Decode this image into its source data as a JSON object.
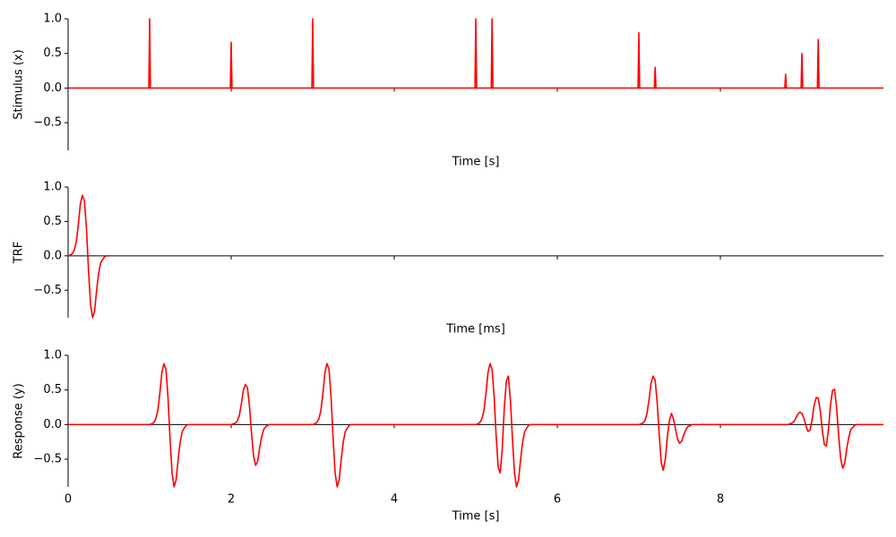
{
  "chart_data": [
    {
      "type": "line",
      "ylabel": "Stimulus (x)",
      "xlabel": "Time [s]",
      "color": "#ff0000",
      "x": [
        0,
        0.99,
        1,
        1.01,
        1.99,
        2,
        2.01,
        2.99,
        3,
        3.01,
        4.99,
        5,
        5.01,
        5.19,
        5.2,
        5.21,
        6.99,
        7,
        7.01,
        7.19,
        7.2,
        7.21,
        8.79,
        8.8,
        8.81,
        8.99,
        9,
        9.01,
        9.19,
        9.2,
        9.21,
        10
      ],
      "values": [
        0,
        0,
        1,
        0,
        0,
        0.66,
        0,
        0,
        1,
        0,
        0,
        1,
        0,
        0,
        1,
        0,
        0,
        0.8,
        0,
        0,
        0.3,
        0,
        0,
        0.2,
        0,
        0,
        0.5,
        0,
        0,
        0.7,
        0,
        0
      ],
      "xlim": [
        0,
        10
      ],
      "xticks": [
        0,
        2,
        4,
        6,
        8
      ],
      "xtick_labels": false,
      "ylim": [
        -0.9,
        1.0
      ],
      "yticks": [
        {
          "value": 1.0,
          "label": "1.0"
        },
        {
          "value": 0.5,
          "label": "0.5"
        },
        {
          "value": 0.0,
          "label": "0.0"
        },
        {
          "value": -0.5,
          "label": "−0.5"
        }
      ]
    },
    {
      "type": "line",
      "ylabel": "TRF",
      "xlabel": "Time [ms]",
      "color": "#ff0000",
      "x": [
        0,
        0.025,
        0.05,
        0.075,
        0.1,
        0.125,
        0.15,
        0.175,
        0.2,
        0.225,
        0.25,
        0.275,
        0.3,
        0.325,
        0.35,
        0.375,
        0.4,
        0.425,
        0.45,
        0.475,
        0.5
      ],
      "values": [
        0,
        0.01,
        0.03,
        0.08,
        0.2,
        0.45,
        0.75,
        0.88,
        0.8,
        0.4,
        -0.2,
        -0.7,
        -0.9,
        -0.8,
        -0.5,
        -0.25,
        -0.1,
        -0.05,
        -0.01,
        0,
        0
      ],
      "xlim": [
        0,
        10
      ],
      "xticks": [
        0,
        2,
        4,
        6,
        8
      ],
      "xtick_labels": false,
      "ylim": [
        -0.9,
        1.0
      ],
      "yticks": [
        {
          "value": 1.0,
          "label": "1.0"
        },
        {
          "value": 0.5,
          "label": "0.5"
        },
        {
          "value": 0.0,
          "label": "0.0"
        },
        {
          "value": -0.5,
          "label": "−0.5"
        }
      ]
    },
    {
      "type": "line",
      "ylabel": "Response (y)",
      "xlabel": "Time [s]",
      "color": "#ff0000",
      "x": [
        0,
        1,
        1.025,
        1.05,
        1.075,
        1.1,
        1.125,
        1.15,
        1.175,
        1.2,
        1.225,
        1.25,
        1.275,
        1.3,
        1.325,
        1.35,
        1.375,
        1.4,
        1.425,
        1.45,
        1.475,
        2,
        2.025,
        2.05,
        2.075,
        2.1,
        2.125,
        2.15,
        2.175,
        2.2,
        2.225,
        2.25,
        2.275,
        2.3,
        2.325,
        2.35,
        2.375,
        2.4,
        2.425,
        2.45,
        2.475,
        3,
        3.025,
        3.05,
        3.075,
        3.1,
        3.125,
        3.15,
        3.175,
        3.2,
        3.225,
        3.25,
        3.275,
        3.3,
        3.325,
        3.35,
        3.375,
        3.4,
        3.425,
        3.45,
        3.475,
        5,
        5.025,
        5.05,
        5.075,
        5.1,
        5.125,
        5.15,
        5.175,
        5.2,
        5.225,
        5.25,
        5.275,
        5.3,
        5.325,
        5.35,
        5.375,
        5.4,
        5.425,
        5.45,
        5.475,
        5.5,
        5.525,
        5.55,
        5.575,
        5.6,
        5.625,
        5.65,
        5.675,
        7,
        7.025,
        7.05,
        7.075,
        7.1,
        7.125,
        7.15,
        7.175,
        7.2,
        7.225,
        7.25,
        7.275,
        7.3,
        7.325,
        7.35,
        7.375,
        7.4,
        7.425,
        7.45,
        7.475,
        7.5,
        7.525,
        7.55,
        7.575,
        7.6,
        7.625,
        7.65,
        8.8,
        8.825,
        8.85,
        8.875,
        8.9,
        8.925,
        8.95,
        8.975,
        9,
        9.025,
        9.05,
        9.075,
        9.1,
        9.125,
        9.15,
        9.175,
        9.2,
        9.225,
        9.25,
        9.275,
        9.3,
        9.325,
        9.35,
        9.375,
        9.4,
        9.425,
        9.45,
        9.475,
        9.5,
        9.525,
        9.55,
        9.575,
        9.6,
        9.625,
        9.65,
        9.675,
        10
      ],
      "values": [
        0,
        0,
        0.01,
        0.03,
        0.08,
        0.2,
        0.45,
        0.75,
        0.88,
        0.8,
        0.4,
        -0.2,
        -0.7,
        -0.9,
        -0.8,
        -0.5,
        -0.25,
        -0.1,
        -0.05,
        -0.01,
        0,
        0,
        0.01,
        0.02,
        0.05,
        0.13,
        0.3,
        0.5,
        0.58,
        0.53,
        0.26,
        -0.13,
        -0.46,
        -0.59,
        -0.53,
        -0.33,
        -0.17,
        -0.07,
        -0.03,
        -0.01,
        0,
        0,
        0.01,
        0.03,
        0.08,
        0.2,
        0.45,
        0.75,
        0.88,
        0.8,
        0.4,
        -0.2,
        -0.7,
        -0.9,
        -0.8,
        -0.5,
        -0.25,
        -0.1,
        -0.05,
        -0.01,
        0,
        0,
        0.01,
        0.03,
        0.08,
        0.2,
        0.45,
        0.75,
        0.88,
        0.8,
        0.41,
        -0.17,
        -0.62,
        -0.7,
        -0.35,
        0.25,
        0.63,
        0.7,
        0.35,
        -0.21,
        -0.7,
        -0.9,
        -0.8,
        -0.5,
        -0.25,
        -0.1,
        -0.05,
        -0.01,
        0,
        0,
        0.01,
        0.02,
        0.06,
        0.16,
        0.36,
        0.6,
        0.7,
        0.64,
        0.32,
        -0.15,
        -0.55,
        -0.66,
        -0.5,
        -0.17,
        0.06,
        0.16,
        0.08,
        -0.07,
        -0.21,
        -0.27,
        -0.24,
        -0.15,
        -0.08,
        -0.03,
        -0.02,
        0,
        0,
        0,
        0.01,
        0.02,
        0.04,
        0.09,
        0.15,
        0.18,
        0.16,
        0.09,
        -0.02,
        -0.1,
        -0.08,
        0.07,
        0.28,
        0.39,
        0.38,
        0.2,
        -0.08,
        -0.29,
        -0.31,
        -0.08,
        0.28,
        0.49,
        0.51,
        0.25,
        -0.15,
        -0.49,
        -0.63,
        -0.56,
        -0.35,
        -0.18,
        -0.07,
        -0.04,
        -0.01,
        0,
        0
      ],
      "xlim": [
        0,
        10
      ],
      "xticks": [
        0,
        2,
        4,
        6,
        8
      ],
      "xtick_labels": true,
      "ylim": [
        -0.9,
        1.0
      ],
      "yticks": [
        {
          "value": 1.0,
          "label": "1.0"
        },
        {
          "value": 0.5,
          "label": "0.5"
        },
        {
          "value": 0.0,
          "label": "0.0"
        },
        {
          "value": -0.5,
          "label": "−0.5"
        }
      ]
    }
  ]
}
